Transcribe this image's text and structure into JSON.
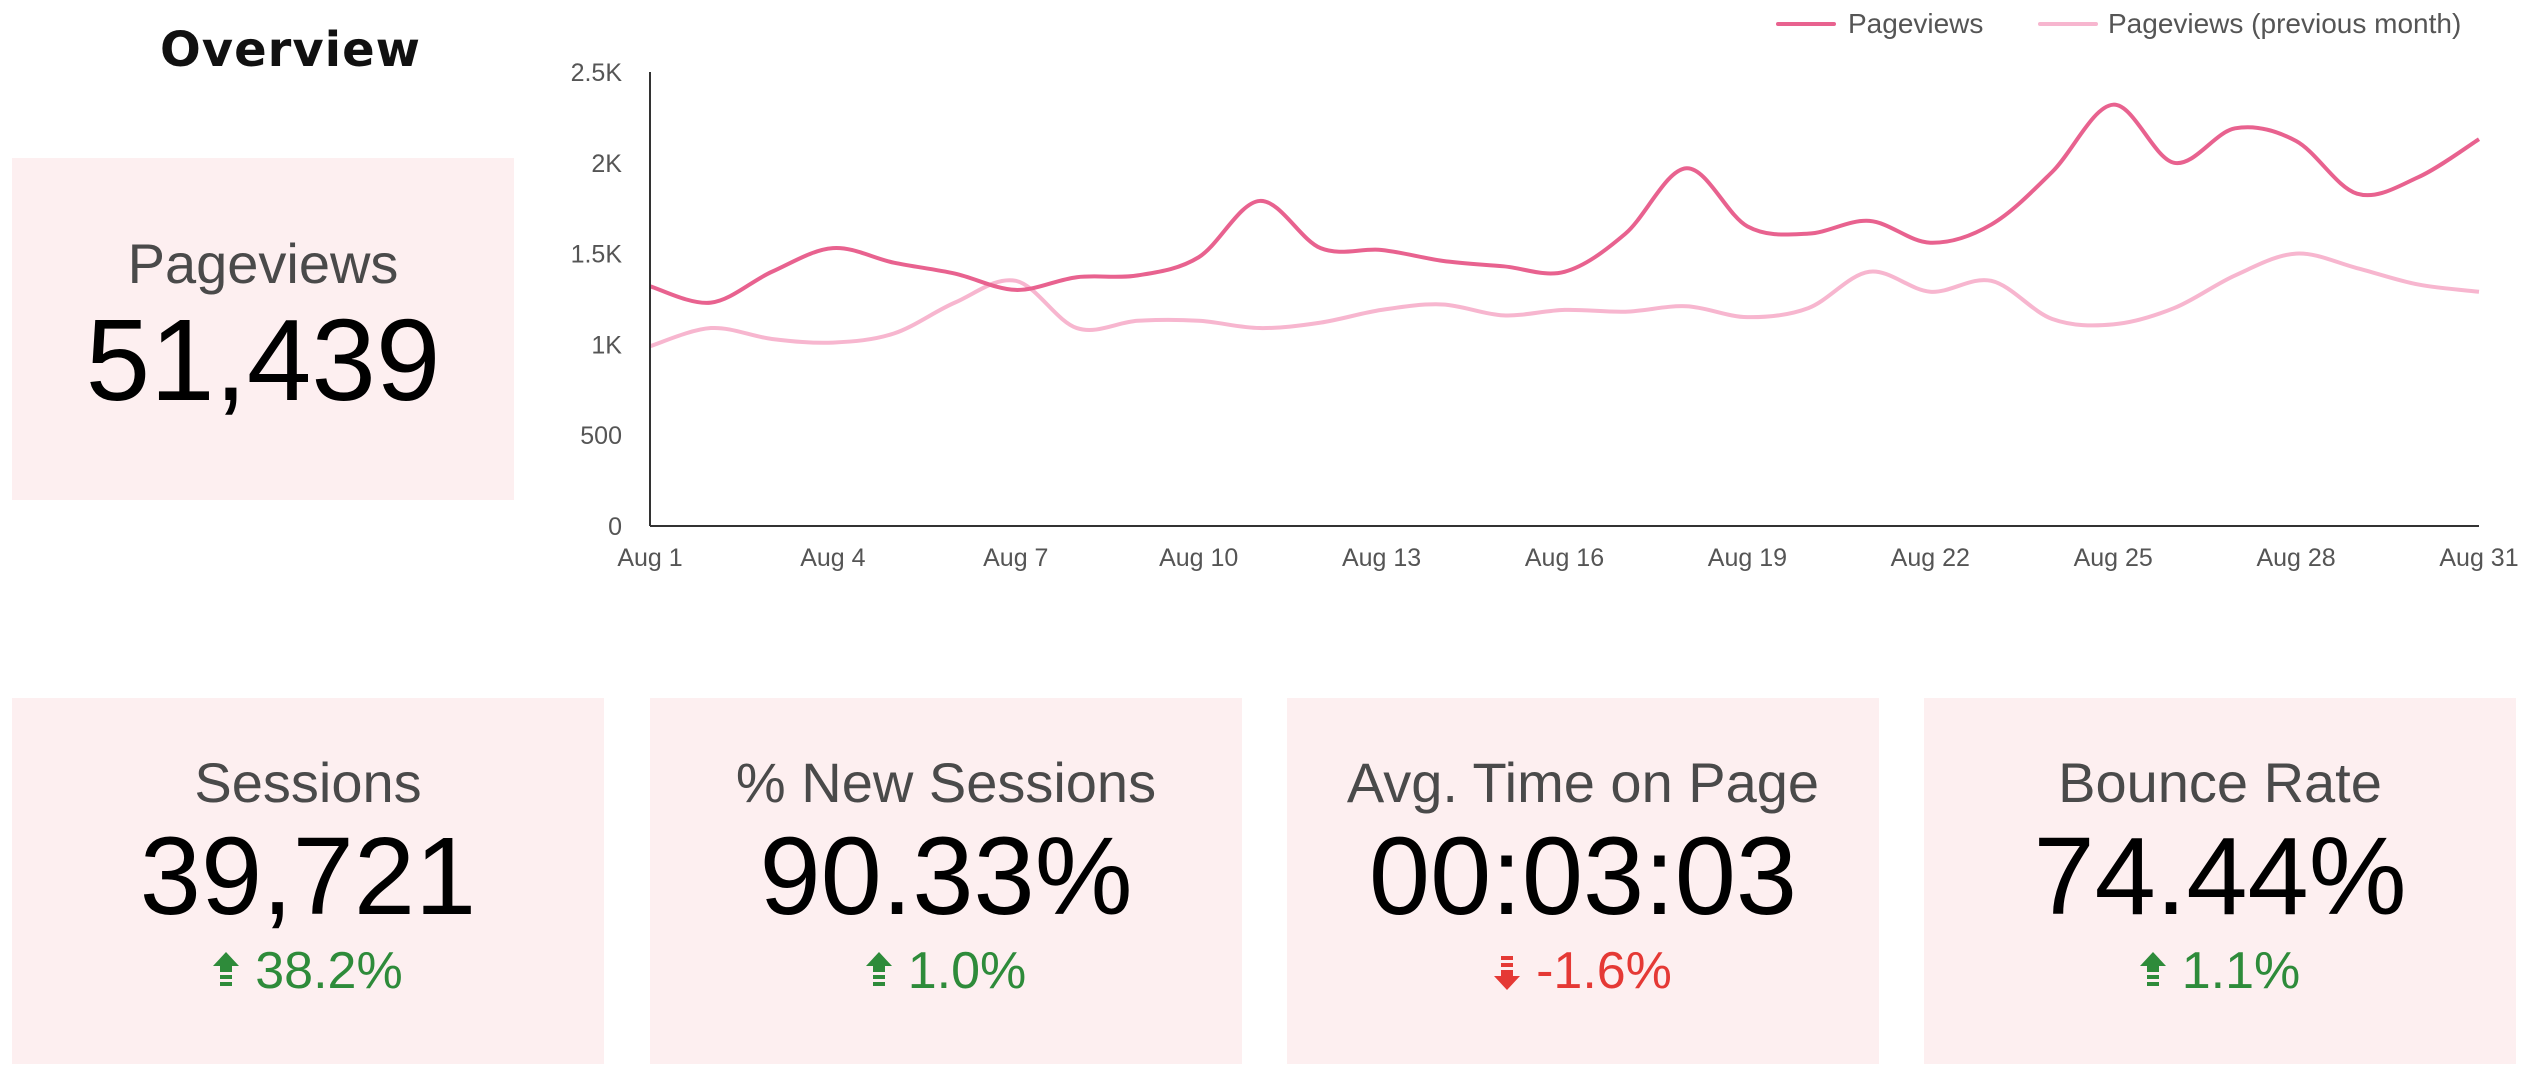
{
  "page": {
    "title": "Overview"
  },
  "scorecard_main": {
    "label": "Pageviews",
    "value": "51,439"
  },
  "kpis": [
    {
      "label": "Sessions",
      "value": "39,721",
      "delta": "38.2%",
      "direction": "up"
    },
    {
      "label": "% New Sessions",
      "value": "90.33%",
      "delta": "1.0%",
      "direction": "up"
    },
    {
      "label": "Avg. Time on Page",
      "value": "00:03:03",
      "delta": "-1.6%",
      "direction": "down"
    },
    {
      "label": "Bounce Rate",
      "value": "74.44%",
      "delta": "1.1%",
      "direction": "up"
    }
  ],
  "colors": {
    "up": "#2e8b3a",
    "down": "#e53935",
    "current": "#e8628f",
    "previous": "#f7b6cf",
    "card_bg": "#fdeff0"
  },
  "chart_data": {
    "type": "line",
    "legend_position": "top-right",
    "grid": false,
    "x": [
      1,
      2,
      3,
      4,
      5,
      6,
      7,
      8,
      9,
      10,
      11,
      12,
      13,
      14,
      15,
      16,
      17,
      18,
      19,
      20,
      21,
      22,
      23,
      24,
      25,
      26,
      27,
      28,
      29,
      30,
      31
    ],
    "x_tick_values": [
      1,
      4,
      7,
      10,
      13,
      16,
      19,
      22,
      25,
      28,
      31
    ],
    "x_tick_labels": [
      "Aug 1",
      "Aug 4",
      "Aug 7",
      "Aug 10",
      "Aug 13",
      "Aug 16",
      "Aug 19",
      "Aug 22",
      "Aug 25",
      "Aug 28",
      "Aug 31"
    ],
    "ylim": [
      0,
      2500
    ],
    "y_tick_values": [
      0,
      500,
      1000,
      1500,
      2000,
      2500
    ],
    "y_tick_labels": [
      "0",
      "500",
      "1K",
      "1.5K",
      "2K",
      "2.5K"
    ],
    "series": [
      {
        "name": "Pageviews",
        "values": [
          1320,
          1230,
          1400,
          1530,
          1450,
          1390,
          1300,
          1370,
          1380,
          1480,
          1790,
          1530,
          1520,
          1460,
          1430,
          1400,
          1610,
          1970,
          1650,
          1610,
          1680,
          1560,
          1660,
          1950,
          2320,
          2000,
          2190,
          2120,
          1830,
          1920,
          2130
        ]
      },
      {
        "name": "Pageviews (previous month)",
        "values": [
          990,
          1090,
          1030,
          1010,
          1060,
          1230,
          1350,
          1090,
          1130,
          1130,
          1090,
          1120,
          1190,
          1220,
          1160,
          1190,
          1180,
          1210,
          1150,
          1200,
          1400,
          1290,
          1350,
          1140,
          1110,
          1200,
          1380,
          1500,
          1420,
          1330,
          1290
        ]
      }
    ]
  }
}
